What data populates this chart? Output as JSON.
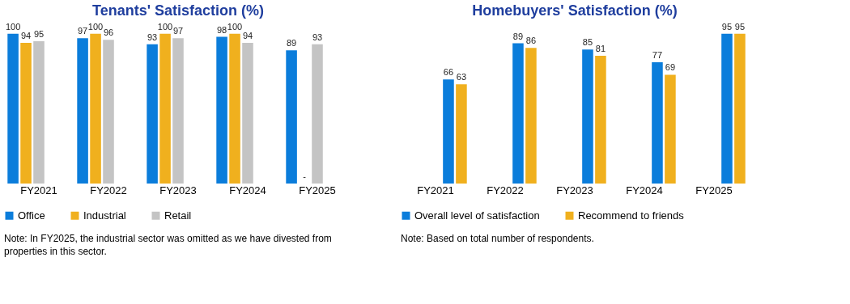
{
  "chart_data": [
    {
      "type": "bar",
      "title": "Tenants' Satisfaction (%)",
      "categories": [
        "FY2021",
        "FY2022",
        "FY2023",
        "FY2024",
        "FY2025"
      ],
      "data_labels": true,
      "legend": "bottom",
      "grid": false,
      "series": [
        {
          "name": "Office",
          "color": "#0b7ddb",
          "values": [
            100,
            97,
            93,
            98,
            89
          ]
        },
        {
          "name": "Industrial",
          "color": "#f0b01e",
          "values": [
            94,
            100,
            100,
            100,
            null
          ],
          "value_labels": [
            "94",
            "100",
            "100",
            "100",
            "-"
          ]
        },
        {
          "name": "Retail",
          "color": "#c4c4c4",
          "values": [
            95,
            96,
            97,
            94,
            93
          ]
        }
      ],
      "annotations": [
        "Note: In FY2025, the industrial sector was omitted as we have divested from properties in this sector."
      ]
    },
    {
      "type": "bar",
      "title": "Homebuyers' Satisfaction (%)",
      "categories": [
        "FY2021",
        "FY2022",
        "FY2023",
        "FY2024",
        "FY2025"
      ],
      "data_labels": true,
      "legend": "bottom",
      "grid": false,
      "series": [
        {
          "name": "Overall level of satisfaction",
          "color": "#0b7ddb",
          "values": [
            66,
            89,
            85,
            77,
            95
          ]
        },
        {
          "name": "Recommend to friends",
          "color": "#f0b01e",
          "values": [
            63,
            86,
            81,
            69,
            95
          ]
        }
      ],
      "annotations": [
        "Note: Based on total number of respondents."
      ]
    }
  ]
}
